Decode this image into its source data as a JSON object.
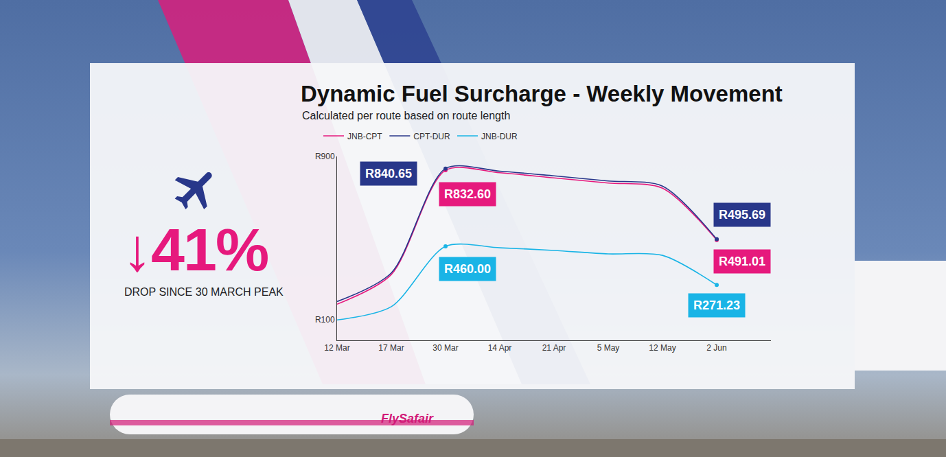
{
  "chart_data": {
    "type": "line",
    "title": "Dynamic Fuel Surcharge - Weekly Movement",
    "subtitle": "Calculated per route based on route length",
    "categories": [
      "12 Mar",
      "17 Mar",
      "30 Mar",
      "14 Apr",
      "21 Apr",
      "5 May",
      "12 May",
      "2 Jun"
    ],
    "series": [
      {
        "name": "JNB-CPT",
        "color": "#e6197d",
        "values": [
          177,
          322,
          832.6,
          820,
          795,
          770,
          745,
          491.01
        ],
        "value_labels": [
          null,
          null,
          "R832.60",
          null,
          null,
          null,
          null,
          "R491.01"
        ]
      },
      {
        "name": "CPT-DUR",
        "color": "#28378a",
        "values": [
          190,
          330,
          840.65,
          828,
          805,
          780,
          755,
          495.69
        ],
        "value_labels": [
          null,
          null,
          "R840.65",
          null,
          null,
          null,
          null,
          "R495.69"
        ]
      },
      {
        "name": "JNB-DUR",
        "color": "#19b4e6",
        "values": [
          100,
          165,
          460,
          453,
          440,
          423,
          416,
          271.23
        ],
        "value_labels": [
          null,
          null,
          "R460.00",
          null,
          null,
          null,
          null,
          "R271.23"
        ]
      }
    ],
    "ylim": [
      0,
      900
    ],
    "yticks": [
      {
        "value": 100,
        "label": "R100"
      },
      {
        "value": 900,
        "label": "R900"
      }
    ],
    "grid": false,
    "legend": "top left",
    "data_labels": true
  },
  "callout": {
    "text": "↓41%",
    "caption": "DROP SINCE 30 MARCH PEAK"
  },
  "brand": "FlySafair"
}
